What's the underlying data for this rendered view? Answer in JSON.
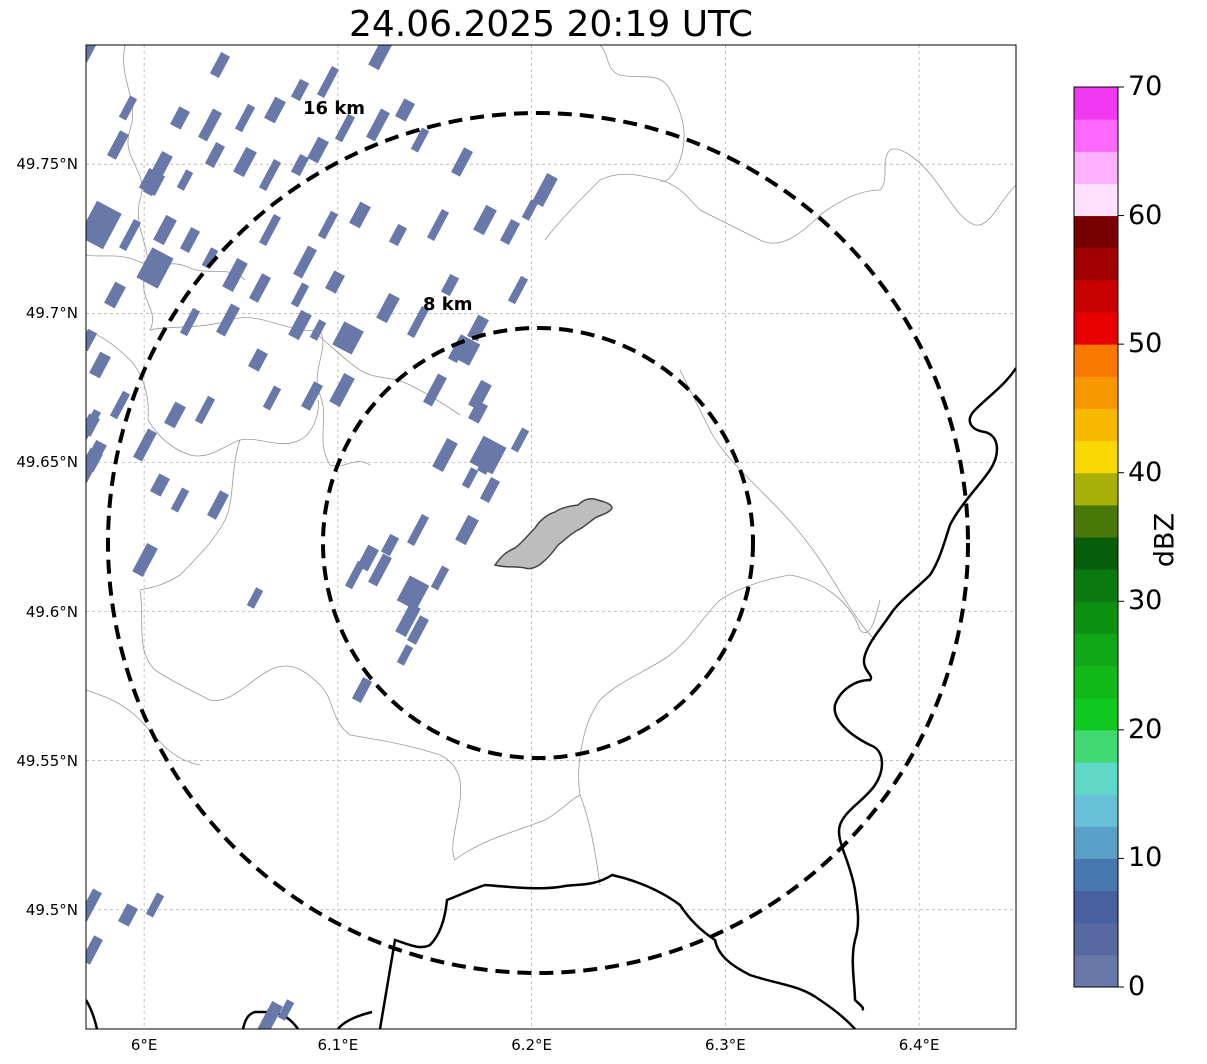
{
  "title": "24.06.2025 20:19 UTC",
  "map": {
    "lon_range": [
      5.97,
      6.45
    ],
    "lat_range": [
      49.46,
      49.79
    ],
    "lat_ticks": [
      {
        "value": 49.75,
        "label": "49.75°N"
      },
      {
        "value": 49.7,
        "label": "49.7°N"
      },
      {
        "value": 49.65,
        "label": "49.65°N"
      },
      {
        "value": 49.6,
        "label": "49.6°N"
      },
      {
        "value": 49.55,
        "label": "49.55°N"
      },
      {
        "value": 49.5,
        "label": "49.5°N"
      }
    ],
    "lon_ticks": [
      {
        "value": 6.0,
        "label": "6°E"
      },
      {
        "value": 6.1,
        "label": "6.1°E"
      },
      {
        "value": 6.2,
        "label": "6.2°E"
      },
      {
        "value": 6.3,
        "label": "6.3°E"
      },
      {
        "value": 6.4,
        "label": "6.4°E"
      }
    ],
    "gridlines": true,
    "range_rings": [
      {
        "label": "8 km",
        "radius_km": 8
      },
      {
        "label": "16 km",
        "radius_km": 16
      }
    ],
    "city_outline": "gray-filled city area (center)"
  },
  "colorbar": {
    "label": "dBZ",
    "tick_labels": [
      "0",
      "10",
      "20",
      "30",
      "40",
      "50",
      "60",
      "70"
    ],
    "min": 0,
    "max": 70,
    "colors": [
      "#6878a8",
      "#5868a0",
      "#4860a0",
      "#4878b0",
      "#58a0c8",
      "#68c0d8",
      "#60d8c8",
      "#40d870",
      "#10c820",
      "#10b818",
      "#10a818",
      "#0c9010",
      "#0a7a10",
      "#065e0a",
      "#487808",
      "#a8b008",
      "#f8d800",
      "#f8b800",
      "#f89800",
      "#f87800",
      "#e80000",
      "#c80000",
      "#a00000",
      "#780000",
      "#ffe0ff",
      "#ffb0ff",
      "#ff68ff",
      "#f038f0"
    ]
  },
  "echo_color": "#6878a8"
}
